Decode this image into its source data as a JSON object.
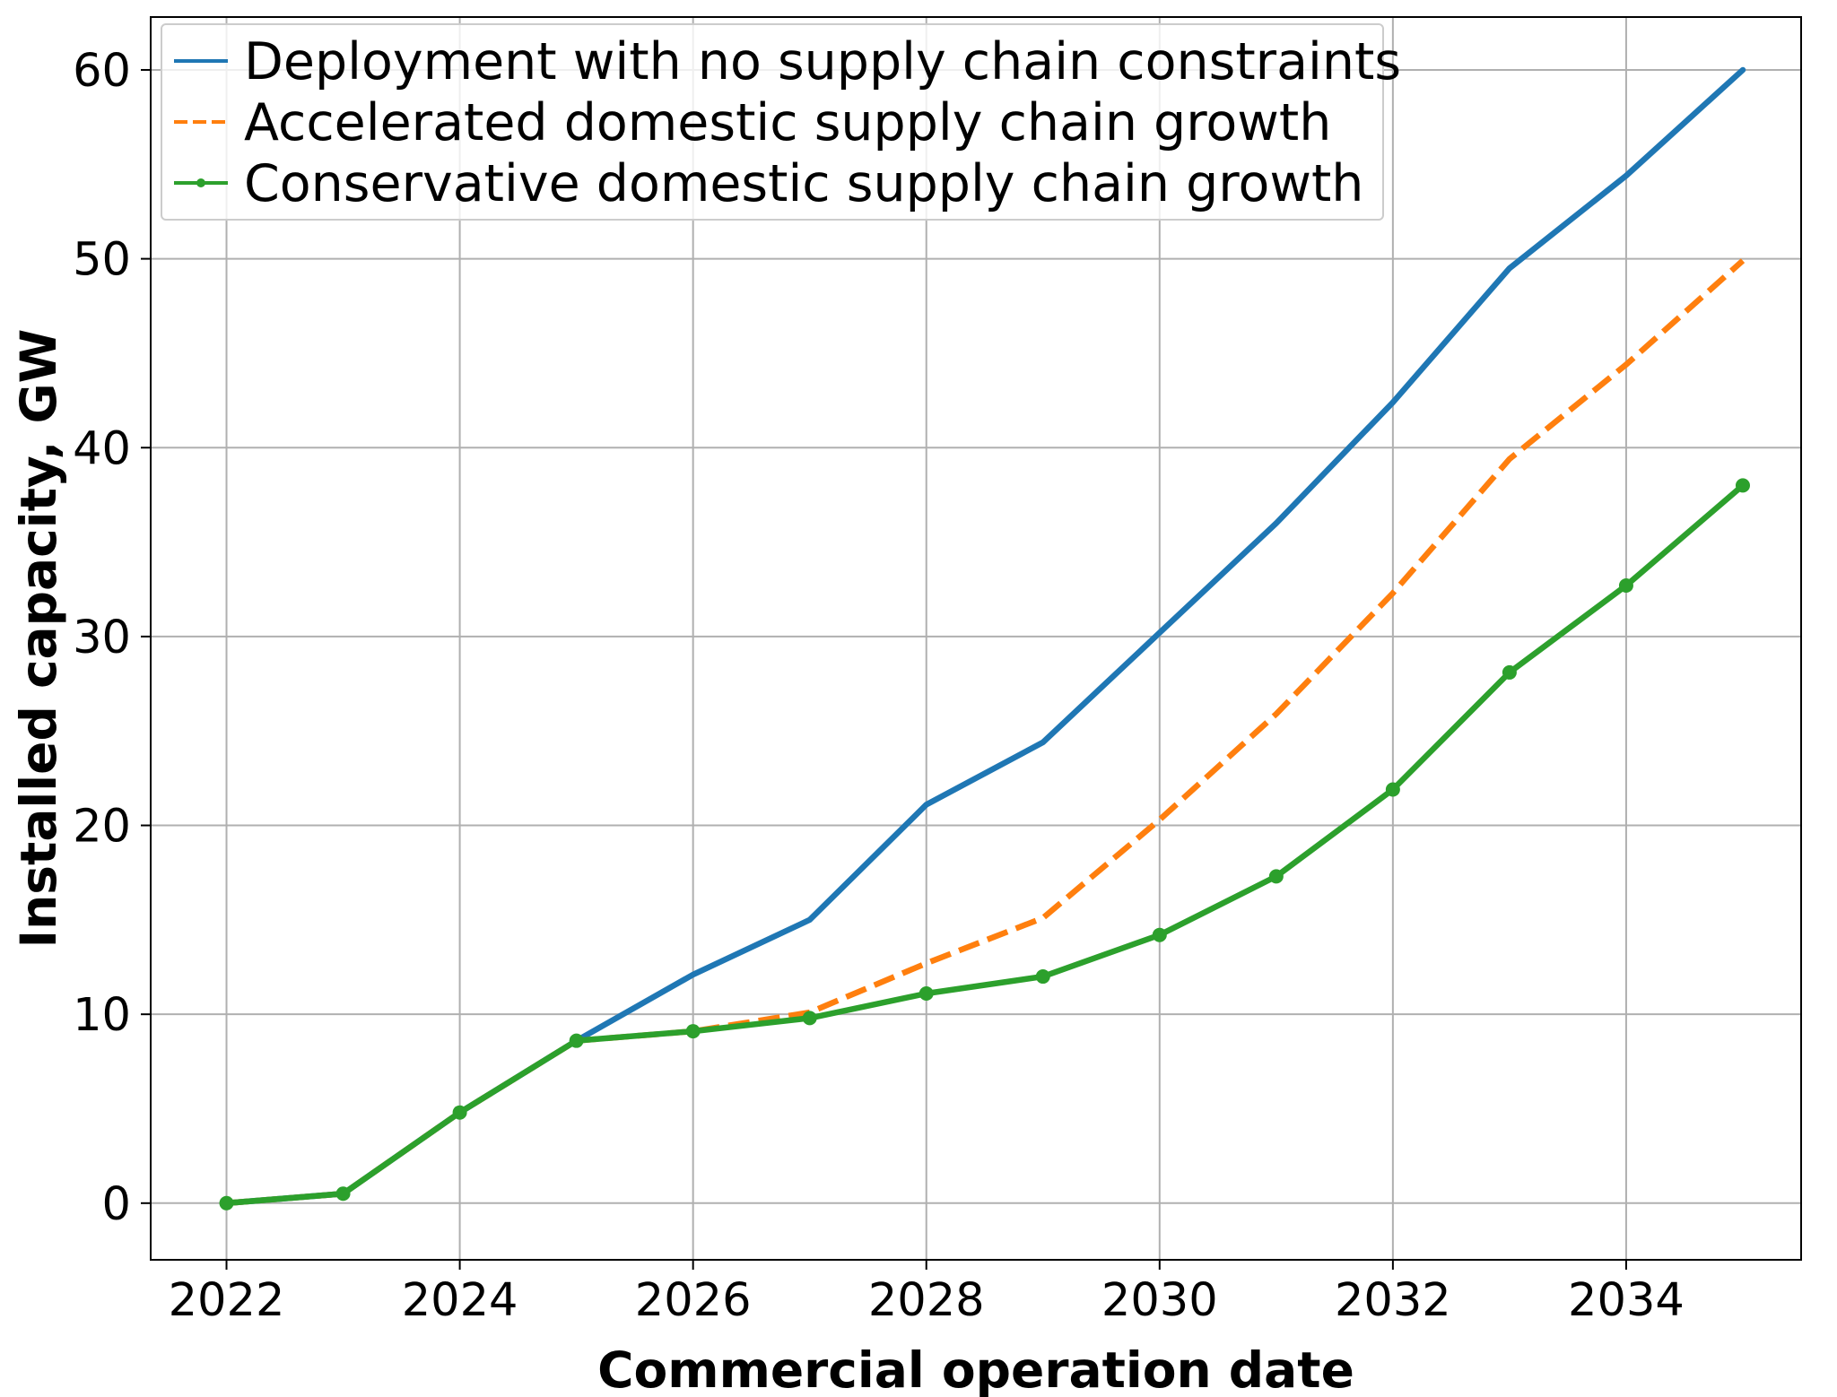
{
  "chart_data": {
    "type": "line",
    "title": "",
    "xlabel": "Commercial operation date",
    "ylabel": "Installed capacity, GW",
    "x": [
      2022,
      2023,
      2024,
      2025,
      2026,
      2027,
      2028,
      2029,
      2030,
      2031,
      2032,
      2033,
      2034,
      2035
    ],
    "xlim": [
      2021.35,
      2035.5
    ],
    "ylim": [
      -3,
      62.8
    ],
    "xticks": [
      2022,
      2024,
      2026,
      2028,
      2030,
      2032,
      2034
    ],
    "xtick_labels": [
      "2022",
      "2024",
      "2026",
      "2028",
      "2030",
      "2032",
      "2034"
    ],
    "yticks": [
      0,
      10,
      20,
      30,
      40,
      50,
      60
    ],
    "ytick_labels": [
      "0",
      "10",
      "20",
      "30",
      "40",
      "50",
      "60"
    ],
    "grid": true,
    "legend_position": "top-left",
    "series": [
      {
        "name": "Deployment with no supply chain constraints",
        "color": "#1f77b4",
        "style": "solid",
        "marker": "none",
        "values": [
          0,
          0.5,
          4.8,
          8.6,
          12.1,
          15.0,
          21.1,
          24.4,
          30.2,
          36.0,
          42.4,
          49.5,
          54.4,
          60.0
        ]
      },
      {
        "name": "Accelerated domestic supply chain growth",
        "color": "#ff7f0e",
        "style": "dashed",
        "marker": "none",
        "values": [
          0,
          0.5,
          4.8,
          8.6,
          9.1,
          10.1,
          12.7,
          15.1,
          20.3,
          25.9,
          32.3,
          39.4,
          44.4,
          49.9
        ]
      },
      {
        "name": "Conservative domestic supply chain growth",
        "color": "#2ca02c",
        "style": "solid",
        "marker": "dot",
        "values": [
          0,
          0.5,
          4.8,
          8.6,
          9.1,
          9.8,
          11.1,
          12.0,
          14.2,
          17.3,
          21.9,
          28.1,
          32.7,
          38.0
        ]
      }
    ]
  }
}
